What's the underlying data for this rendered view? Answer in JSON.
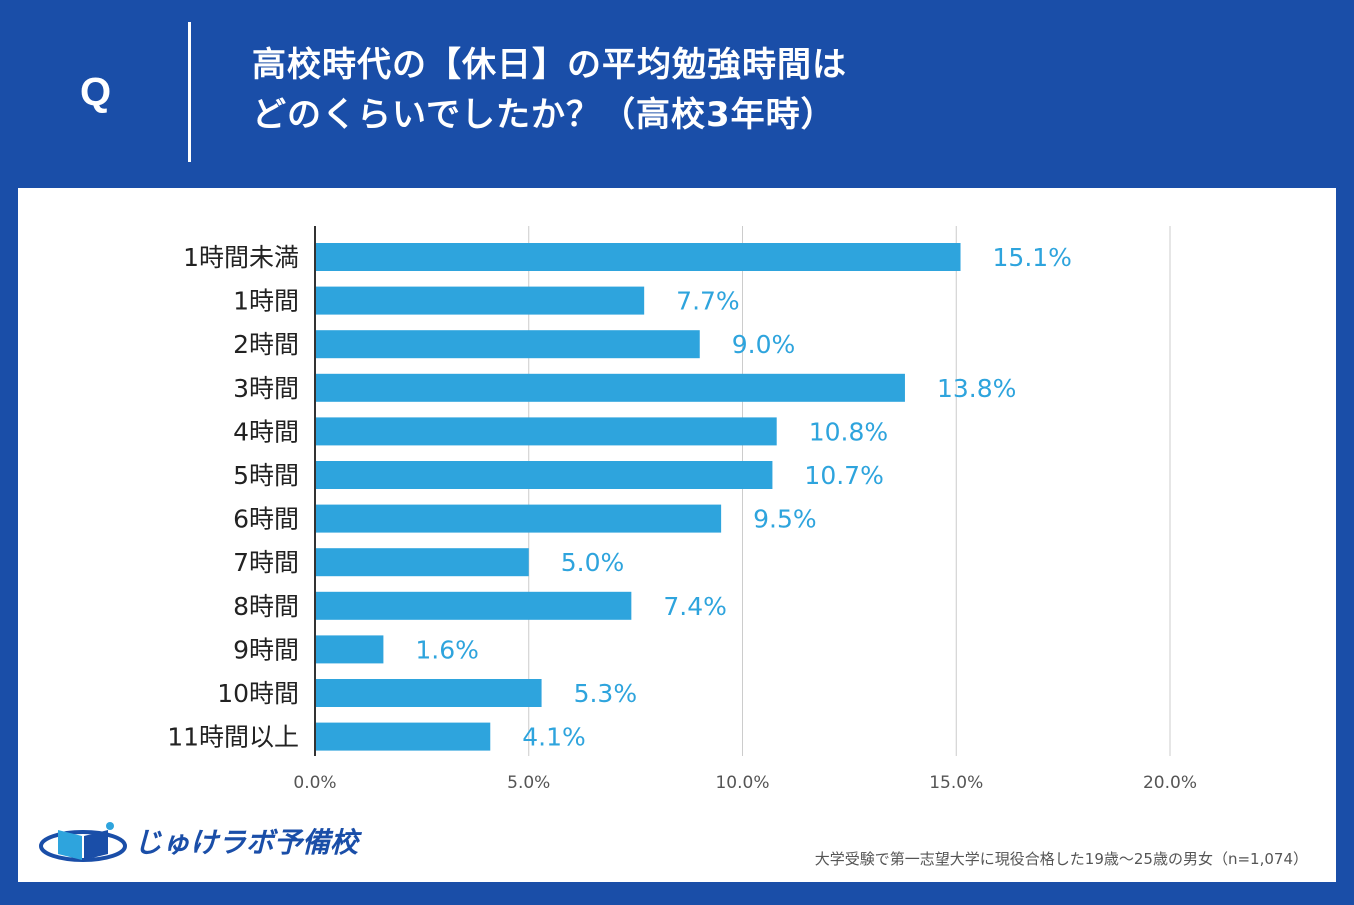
{
  "header": {
    "q_mark": "Q",
    "title_line1": "高校時代の【休日】の平均勉強時間は",
    "title_line2": "どのくらいでしたか？（高校3年時）"
  },
  "chart_data": {
    "type": "bar",
    "orientation": "horizontal",
    "categories": [
      "1時間未満",
      "1時間",
      "2時間",
      "3時間",
      "4時間",
      "5時間",
      "6時間",
      "7時間",
      "8時間",
      "9時間",
      "10時間",
      "11時間以上"
    ],
    "values": [
      15.1,
      7.7,
      9.0,
      13.8,
      10.8,
      10.7,
      9.5,
      5.0,
      7.4,
      1.6,
      5.3,
      4.1
    ],
    "value_labels": [
      "15.1%",
      "7.7%",
      "9.0%",
      "13.8%",
      "10.8%",
      "10.7%",
      "9.5%",
      "5.0%",
      "7.4%",
      "1.6%",
      "5.3%",
      "4.1%"
    ],
    "x_ticks": [
      0,
      5,
      10,
      15,
      20
    ],
    "x_tick_labels": [
      "0.0%",
      "5.0%",
      "10.0%",
      "15.0%",
      "20.0%"
    ],
    "xlim": [
      0,
      20
    ],
    "grid": true,
    "bar_color": "#2ea4dd"
  },
  "footer": {
    "logo_text": "じゅけラボ予備校",
    "note": "大学受験で第一志望大学に現役合格した19歳〜25歳の男女（n=1,074）"
  },
  "colors": {
    "background": "#1a4ea8",
    "panel": "#ffffff",
    "bar": "#2ea4dd",
    "grid": "#cccccc"
  }
}
